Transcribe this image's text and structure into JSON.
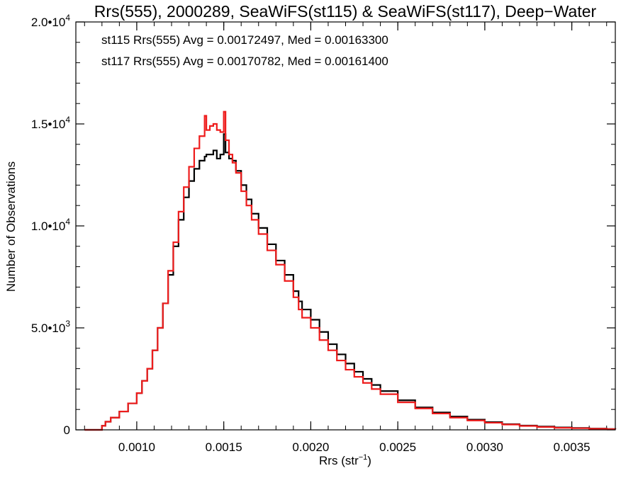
{
  "chart_data": {
    "type": "line",
    "title": "Rrs(555), 2000289, SeaWiFS(st115) & SeaWiFS(st117), Deep−Water",
    "xlabel": {
      "base": "Rrs (str",
      "sup": "−1",
      "close": ")"
    },
    "ylabel": "Number of Observations",
    "xlim": [
      0.00065,
      0.00375
    ],
    "ylim": [
      0,
      20000
    ],
    "x_ticks": [
      {
        "value": 0.001,
        "label": "0.0010"
      },
      {
        "value": 0.0015,
        "label": "0.0015"
      },
      {
        "value": 0.002,
        "label": "0.0020"
      },
      {
        "value": 0.0025,
        "label": "0.0025"
      },
      {
        "value": 0.003,
        "label": "0.0030"
      },
      {
        "value": 0.0035,
        "label": "0.0035"
      }
    ],
    "y_ticks": [
      {
        "value": 0,
        "mant": "0",
        "exp": ""
      },
      {
        "value": 5000,
        "mant": "5.0•10",
        "exp": "3"
      },
      {
        "value": 10000,
        "mant": "1.0•10",
        "exp": "4"
      },
      {
        "value": 15000,
        "mant": "1.5•10",
        "exp": "4"
      },
      {
        "value": 20000,
        "mant": "2.0•10",
        "exp": "4"
      }
    ],
    "x_minor_step": 0.0001,
    "y_minor_step": 1000,
    "legend_placement": "top-left",
    "series": [
      {
        "label": "st115 Rrs(555) Avg = 0.00172497, Med = 0.00163300",
        "color": "#000000",
        "x": [
          0.0007,
          0.00078,
          0.0008,
          0.00082,
          0.00085,
          0.0009,
          0.00095,
          0.001,
          0.00103,
          0.00106,
          0.00109,
          0.00112,
          0.00115,
          0.00118,
          0.00121,
          0.00124,
          0.00127,
          0.0013,
          0.00133,
          0.00136,
          0.00139,
          0.0014,
          0.00142,
          0.00144,
          0.00146,
          0.00148,
          0.0015,
          0.00151,
          0.00153,
          0.00155,
          0.00157,
          0.0016,
          0.00163,
          0.00166,
          0.0017,
          0.00175,
          0.0018,
          0.00185,
          0.0019,
          0.00193,
          0.00195,
          0.002,
          0.00205,
          0.0021,
          0.00215,
          0.0022,
          0.00225,
          0.0023,
          0.00235,
          0.0024,
          0.0025,
          0.0026,
          0.0027,
          0.0028,
          0.0029,
          0.003,
          0.0031,
          0.0032,
          0.0033,
          0.0034,
          0.0035,
          0.0036,
          0.0037,
          0.00375
        ],
        "values": [
          0,
          0,
          200,
          400,
          600,
          900,
          1300,
          1800,
          2400,
          3000,
          3900,
          5000,
          6200,
          7600,
          9000,
          10300,
          11400,
          12200,
          12800,
          13200,
          13400,
          13500,
          13500,
          13700,
          13300,
          13500,
          14500,
          13600,
          13300,
          13200,
          12700,
          12000,
          11300,
          10600,
          9900,
          9100,
          8300,
          7600,
          6800,
          6300,
          5900,
          5400,
          4800,
          4200,
          3700,
          3250,
          2850,
          2500,
          2200,
          1900,
          1450,
          1100,
          850,
          650,
          500,
          380,
          280,
          210,
          160,
          120,
          90,
          60,
          40,
          30
        ]
      },
      {
        "label": "st117 Rrs(555) Avg = 0.00170782, Med = 0.00161400",
        "color": "#ee1c1c",
        "x": [
          0.0007,
          0.00078,
          0.0008,
          0.00082,
          0.00085,
          0.0009,
          0.00095,
          0.001,
          0.00103,
          0.00106,
          0.00109,
          0.00112,
          0.00115,
          0.00118,
          0.00121,
          0.00124,
          0.00127,
          0.0013,
          0.00133,
          0.00136,
          0.00139,
          0.0014,
          0.00142,
          0.00144,
          0.00146,
          0.00148,
          0.0015,
          0.00151,
          0.00153,
          0.00155,
          0.00157,
          0.0016,
          0.00163,
          0.00166,
          0.0017,
          0.00175,
          0.0018,
          0.00185,
          0.0019,
          0.00193,
          0.00195,
          0.002,
          0.00205,
          0.0021,
          0.00215,
          0.0022,
          0.00225,
          0.0023,
          0.00235,
          0.0024,
          0.0025,
          0.0026,
          0.0027,
          0.0028,
          0.0029,
          0.003,
          0.0031,
          0.0032,
          0.0033,
          0.0034,
          0.0035,
          0.0036,
          0.0037,
          0.00375
        ],
        "values": [
          0,
          0,
          200,
          400,
          600,
          900,
          1300,
          1800,
          2400,
          3000,
          3900,
          5000,
          6200,
          7800,
          9200,
          10700,
          11900,
          12900,
          13800,
          14400,
          15400,
          14700,
          14900,
          15000,
          14700,
          14600,
          15600,
          14200,
          13500,
          13100,
          12600,
          11700,
          11000,
          10300,
          9600,
          8800,
          8100,
          7300,
          6500,
          5900,
          5500,
          5000,
          4400,
          3900,
          3400,
          2950,
          2600,
          2300,
          2000,
          1750,
          1350,
          1050,
          800,
          600,
          460,
          350,
          260,
          190,
          140,
          100,
          80,
          55,
          35,
          25
        ]
      }
    ]
  }
}
